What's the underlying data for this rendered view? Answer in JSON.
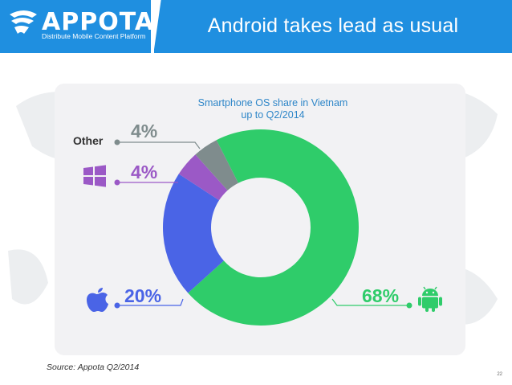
{
  "header": {
    "brand": "APPOTA",
    "tagline": "Distribute Mobile Content Platform",
    "title": "Android takes lead as usual"
  },
  "colors": {
    "header_blue": "#1f8fe0",
    "android_green": "#2fcc6a",
    "ios_blue": "#4a64e6",
    "windows_purple": "#9b59c6",
    "other_gray": "#7f8c8d"
  },
  "chart_data": {
    "type": "pie",
    "donut": true,
    "title": "Smartphone OS share in Vietnam\nup to Q2/2014",
    "title_lines": [
      "Smartphone OS share in Vietnam",
      "up to Q2/2014"
    ],
    "slices": [
      {
        "label": "Android",
        "value": 68,
        "display": "68%",
        "color": "#2fcc6a",
        "icon": "android-icon"
      },
      {
        "label": "iOS",
        "value": 20,
        "display": "20%",
        "color": "#4a64e6",
        "icon": "apple-icon"
      },
      {
        "label": "Windows Phone",
        "value": 4,
        "display": "4%",
        "color": "#9b59c6",
        "icon": "windows-icon"
      },
      {
        "label": "Other",
        "value": 4,
        "display": "4%",
        "color": "#7f8c8d"
      }
    ],
    "other_text": "Other"
  },
  "footer": {
    "source": "Source: Appota Q2/2014",
    "page": "22"
  }
}
